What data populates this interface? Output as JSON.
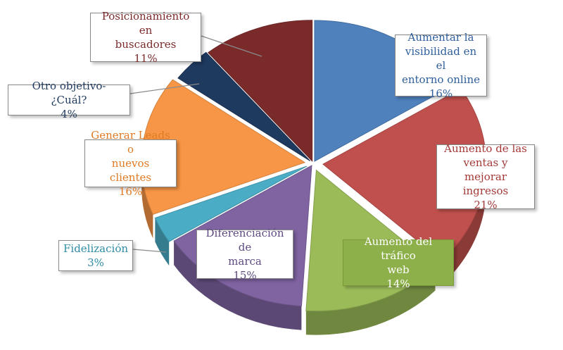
{
  "chart_data": {
    "type": "pie",
    "title": "",
    "slices": [
      {
        "label": "Aumentar la visibilidad en el entorno online",
        "lines": [
          "Aumentar la",
          "visibilidad en el",
          "entorno online"
        ],
        "percent_label": "16%",
        "value": 16,
        "color": "#4F81BD",
        "text_color": "#2E5E9E"
      },
      {
        "label": "Aumento de las ventas y mejorar ingresos",
        "lines": [
          "Aumento de las",
          "ventas y mejorar",
          "ingresos"
        ],
        "percent_label": "21%",
        "value": 21,
        "color": "#C0504D",
        "text_color": "#A33A37"
      },
      {
        "label": "Aumento del tráfico web",
        "lines": [
          "Aumento del tráfico",
          "web"
        ],
        "percent_label": "14%",
        "value": 14,
        "color": "#9BBB59",
        "text_color": "#FFFFFF",
        "fill_label": "#8DB04A"
      },
      {
        "label": "Diferenciación de marca",
        "lines": [
          "Diferenciación de",
          "marca"
        ],
        "percent_label": "15%",
        "value": 15,
        "color": "#8064A2",
        "text_color": "#5E4A80"
      },
      {
        "label": "Fidelización",
        "lines": [
          "Fidelización"
        ],
        "percent_label": "3%",
        "value": 3,
        "color": "#4BACC6",
        "text_color": "#2F8CA6"
      },
      {
        "label": "Generar Leads o nuevos clientes",
        "lines": [
          "Generar Leads o",
          "nuevos clientes"
        ],
        "percent_label": "16%",
        "value": 16,
        "color": "#F79646",
        "text_color": "#E07A24"
      },
      {
        "label": "Otro objetivo- ¿Cuál?",
        "lines": [
          "Otro objetivo- ¿Cuál?"
        ],
        "percent_label": "4%",
        "value": 4,
        "color": "#1F3A5F",
        "text_color": "#1F3A5F"
      },
      {
        "label": "Posicionamiento en buscadores",
        "lines": [
          "Posicionamiento en",
          "buscadores"
        ],
        "percent_label": "11%",
        "value": 11,
        "color": "#7B2A2A",
        "text_color": "#7B2A2A"
      }
    ],
    "legend": "none",
    "style": "3d-exploded"
  }
}
